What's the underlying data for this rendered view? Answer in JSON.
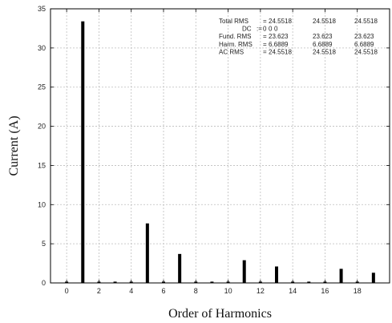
{
  "chart_data": {
    "type": "bar",
    "xlabel": "Order of Harmonics",
    "ylabel": "Current (A)",
    "xlim": [
      -1,
      20
    ],
    "ylim": [
      0,
      35
    ],
    "xticks": [
      0,
      2,
      4,
      6,
      8,
      10,
      12,
      14,
      16,
      18
    ],
    "yticks": [
      0,
      5,
      10,
      15,
      20,
      25,
      30,
      35
    ],
    "grid": true,
    "x": [
      1,
      5,
      7,
      11,
      13,
      17,
      19
    ],
    "values": [
      33.4,
      7.6,
      3.7,
      2.9,
      2.1,
      1.8,
      1.3
    ],
    "zero_orders": [
      0,
      2,
      3,
      4,
      6,
      8,
      9,
      10,
      12,
      14,
      15,
      16,
      18
    ],
    "stats": [
      {
        "label": "Total  RMS",
        "sep": "=",
        "values": [
          "24.5518",
          "24.5518",
          "24.5518"
        ]
      },
      {
        "label": "DC",
        "sep": ":=",
        "values": [
          "0",
          "0",
          "0"
        ]
      },
      {
        "label": "Fund. RMS",
        "sep": "=",
        "values": [
          "23.623",
          "23.623",
          "23.623"
        ]
      },
      {
        "label": "Harm. RMS",
        "sep": "=",
        "values": [
          "6.6889",
          "6.6889",
          "6.6889"
        ]
      },
      {
        "label": "AC     RMS",
        "sep": "=",
        "values": [
          "24.5518",
          "24.5518",
          "24.5518"
        ]
      }
    ]
  }
}
